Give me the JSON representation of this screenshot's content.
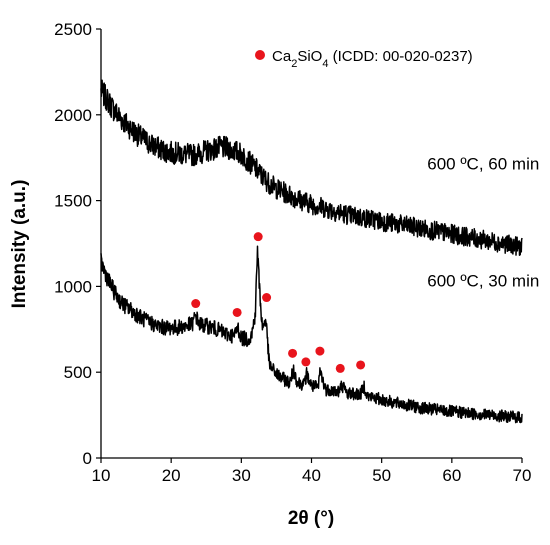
{
  "chart_data": {
    "type": "line",
    "xlabel": "2θ (°)",
    "ylabel": "Intensity (a.u.)",
    "xlim": [
      10,
      70
    ],
    "ylim": [
      0,
      2500
    ],
    "xticks": [
      10,
      20,
      30,
      40,
      50,
      60,
      70
    ],
    "yticks": [
      0,
      500,
      1000,
      1500,
      2000,
      2500
    ],
    "line_color": "#000000",
    "marker_color": "#e8141c",
    "grid": false,
    "legend": {
      "position": "top-right",
      "label_prefix": "Ca",
      "label_sub1": "2",
      "label_mid": "SiO",
      "label_sub2": "4",
      "label_suffix": " (ICDD: 00-020-0237)"
    },
    "series": [
      {
        "name": "600 ºC, 60 min",
        "x": [
          10,
          11,
          12,
          13,
          14,
          15,
          16,
          17,
          18,
          19,
          20,
          21,
          22,
          23,
          24,
          25,
          26,
          27,
          28,
          29,
          30,
          31,
          32,
          33,
          34,
          35,
          36,
          37,
          38,
          40,
          42,
          44,
          46,
          48,
          50,
          52,
          54,
          56,
          58,
          60,
          62,
          64,
          66,
          68,
          70
        ],
        "y": [
          2140,
          2080,
          2020,
          1970,
          1930,
          1890,
          1860,
          1830,
          1810,
          1790,
          1780,
          1775,
          1770,
          1765,
          1775,
          1790,
          1800,
          1810,
          1805,
          1790,
          1770,
          1730,
          1690,
          1640,
          1600,
          1570,
          1550,
          1530,
          1510,
          1480,
          1455,
          1430,
          1410,
          1395,
          1380,
          1365,
          1350,
          1335,
          1320,
          1305,
          1290,
          1275,
          1260,
          1245,
          1230
        ]
      },
      {
        "name": "600 ºC, 30 min",
        "x": [
          10,
          11,
          12,
          13,
          14,
          15,
          16,
          17,
          18,
          19,
          20,
          21,
          22,
          23,
          23.5,
          24,
          25,
          26,
          27,
          28,
          29,
          29.5,
          30,
          31,
          31.5,
          32,
          32.3,
          32.6,
          33,
          33.5,
          34,
          35,
          36,
          37,
          37.4,
          38,
          39,
          39.3,
          40,
          41,
          41.2,
          42,
          43,
          44,
          44.3,
          45,
          46,
          47,
          47.5,
          48,
          50,
          52,
          54,
          56,
          58,
          60,
          62,
          64,
          66,
          68,
          70
        ],
        "y": [
          1140,
          1040,
          960,
          900,
          870,
          840,
          810,
          790,
          770,
          760,
          760,
          760,
          770,
          780,
          830,
          780,
          770,
          760,
          740,
          720,
          710,
          760,
          700,
          690,
          720,
          850,
          1220,
          980,
          760,
          810,
          540,
          490,
          460,
          440,
          520,
          440,
          430,
          490,
          420,
          410,
          510,
          400,
          395,
          385,
          430,
          380,
          375,
          370,
          420,
          360,
          340,
          320,
          305,
          290,
          280,
          270,
          262,
          255,
          248,
          242,
          235
        ]
      }
    ],
    "peak_markers": {
      "series": "Ca2SiO4",
      "points": [
        {
          "x": 23.5,
          "y": 900
        },
        {
          "x": 29.4,
          "y": 848
        },
        {
          "x": 32.4,
          "y": 1290
        },
        {
          "x": 33.6,
          "y": 935
        },
        {
          "x": 37.3,
          "y": 610
        },
        {
          "x": 39.2,
          "y": 560
        },
        {
          "x": 41.2,
          "y": 623
        },
        {
          "x": 44.1,
          "y": 522
        },
        {
          "x": 47.0,
          "y": 542
        }
      ]
    },
    "annotations": [
      {
        "text": "600 ºC, 60 min",
        "x": 56.5,
        "y": 1680
      },
      {
        "text": "600 ºC, 30 min",
        "x": 56.5,
        "y": 1000
      }
    ]
  }
}
